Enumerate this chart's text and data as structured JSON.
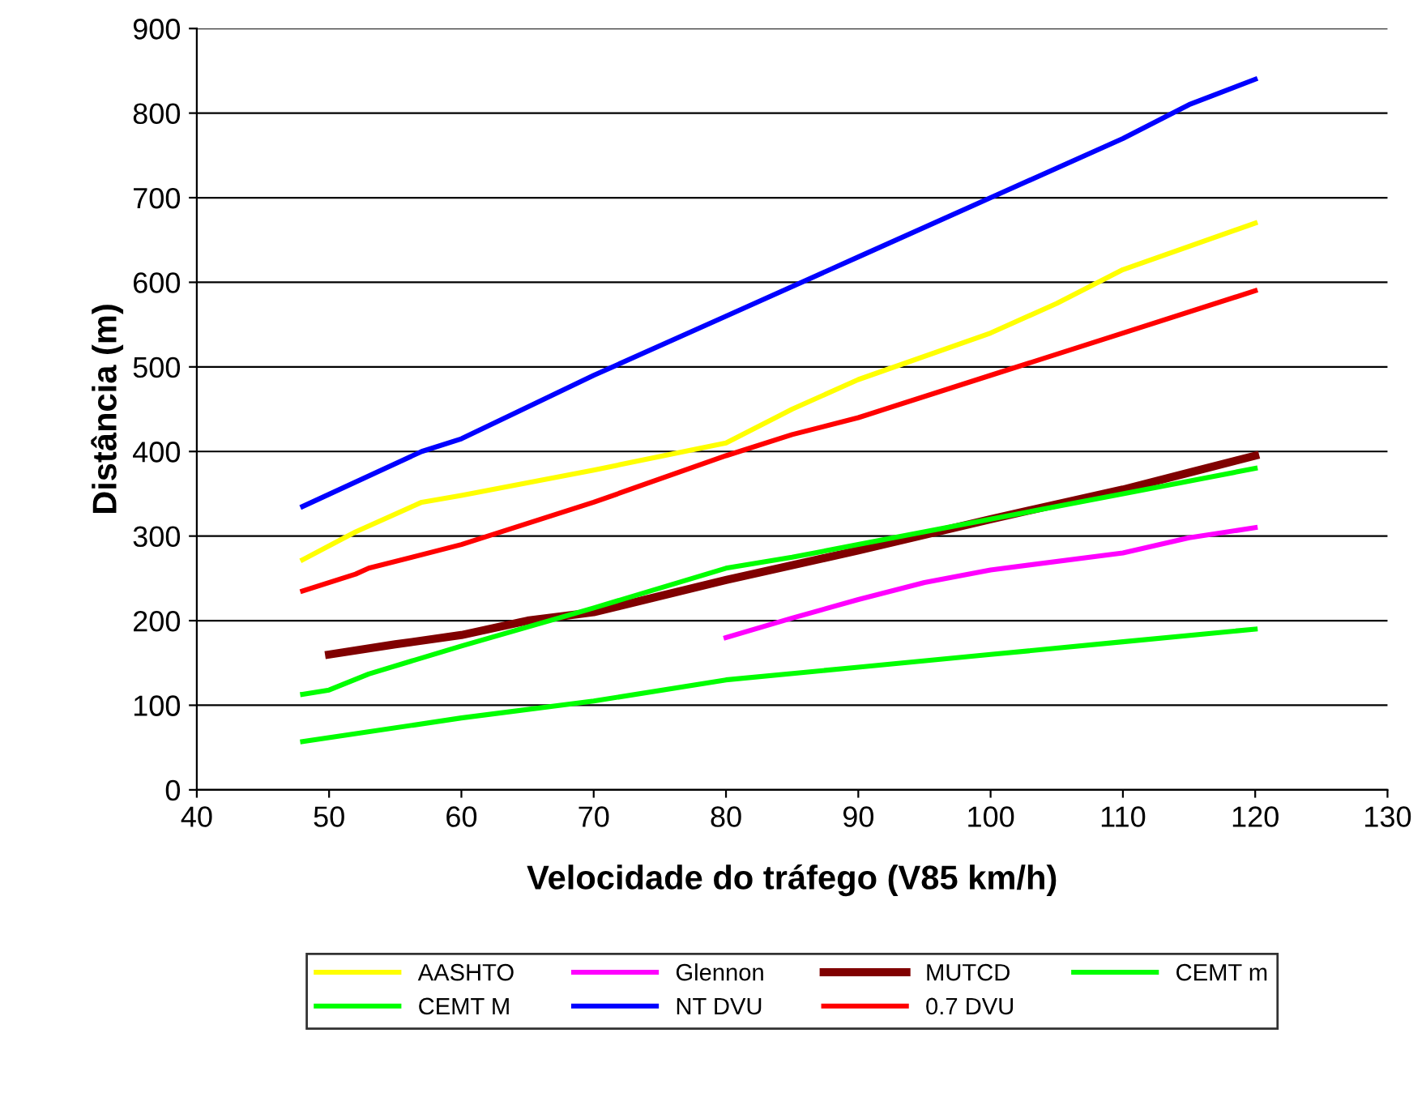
{
  "chart_data": {
    "type": "line",
    "xlabel": "Velocidade do tráfego (V85 km/h)",
    "ylabel": "Distância (m)",
    "xlim": [
      40,
      130
    ],
    "xticks": [
      40,
      50,
      60,
      70,
      80,
      90,
      100,
      110,
      120,
      130
    ],
    "ylim": [
      0,
      900
    ],
    "yticks": [
      0,
      100,
      200,
      300,
      400,
      500,
      600,
      700,
      800,
      900
    ],
    "grid": "y",
    "legend": "bottom",
    "marker": "none",
    "line_style": "solid",
    "series": [
      {
        "name": "AASHTO",
        "color": "#ffff00",
        "x": [
          48,
          52,
          57,
          60,
          70,
          80,
          85,
          90,
          100,
          105,
          110,
          120
        ],
        "values": [
          272,
          305,
          340,
          348,
          378,
          410,
          450,
          485,
          540,
          575,
          615,
          670
        ]
      },
      {
        "name": "Glennon",
        "color": "#ff00ff",
        "x": [
          80,
          85,
          90,
          95,
          100,
          110,
          115,
          120
        ],
        "values": [
          180,
          203,
          225,
          245,
          260,
          280,
          298,
          310
        ]
      },
      {
        "name": "MUTCD",
        "color": "#800000",
        "x": [
          50,
          55,
          60,
          65,
          70,
          80,
          90,
          100,
          110,
          115,
          120
        ],
        "values": [
          160,
          172,
          183,
          200,
          210,
          248,
          283,
          320,
          355,
          375,
          395
        ]
      },
      {
        "name": "CEMT m",
        "color": "#00ff00",
        "x": [
          48,
          60,
          70,
          80,
          90,
          100,
          110,
          120
        ],
        "values": [
          57,
          85,
          105,
          130,
          145,
          160,
          175,
          190
        ]
      },
      {
        "name": "CEMT M",
        "color": "#00ff00",
        "x": [
          48,
          50,
          53,
          60,
          70,
          80,
          85,
          90,
          100,
          110,
          120
        ],
        "values": [
          113,
          118,
          137,
          170,
          215,
          262,
          275,
          290,
          320,
          350,
          380
        ]
      },
      {
        "name": "NT DVU",
        "color": "#0000ff",
        "x": [
          48,
          57,
          60,
          70,
          80,
          90,
          100,
          110,
          115,
          120
        ],
        "values": [
          335,
          400,
          415,
          490,
          560,
          630,
          700,
          770,
          810,
          840
        ]
      },
      {
        "name": "0.7 DVU",
        "color": "#ff0000",
        "x": [
          48,
          52,
          53,
          60,
          70,
          80,
          85,
          90,
          100,
          110,
          120
        ],
        "values": [
          235,
          255,
          262,
          290,
          340,
          395,
          420,
          440,
          490,
          540,
          590
        ]
      }
    ]
  }
}
